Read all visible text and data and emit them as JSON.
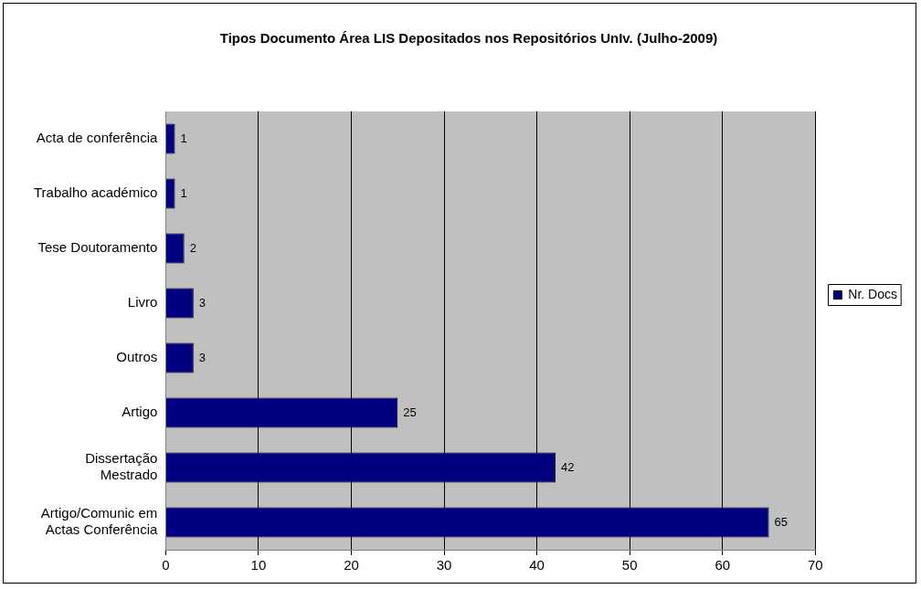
{
  "chart_data": {
    "type": "bar",
    "orientation": "horizontal",
    "title": "Tipos Documento Área LIS Depositados nos Repositórios UnIv. (Julho-2009)",
    "categories": [
      "Acta de conferência",
      "Trabalho académico",
      "Tese Doutoramento",
      "Livro",
      "Outros",
      "Artigo",
      "Dissertação Mestrado",
      "Artigo/Comunic em Actas Conferência"
    ],
    "series": [
      {
        "name": "Nr. Docs",
        "color": "#000080",
        "values": [
          1,
          1,
          2,
          3,
          3,
          25,
          42,
          65
        ]
      }
    ],
    "xlim": [
      0,
      70
    ],
    "xticks": [
      0,
      10,
      20,
      30,
      40,
      50,
      60,
      70
    ],
    "grid": "x",
    "legend": "right",
    "data_labels": true
  }
}
